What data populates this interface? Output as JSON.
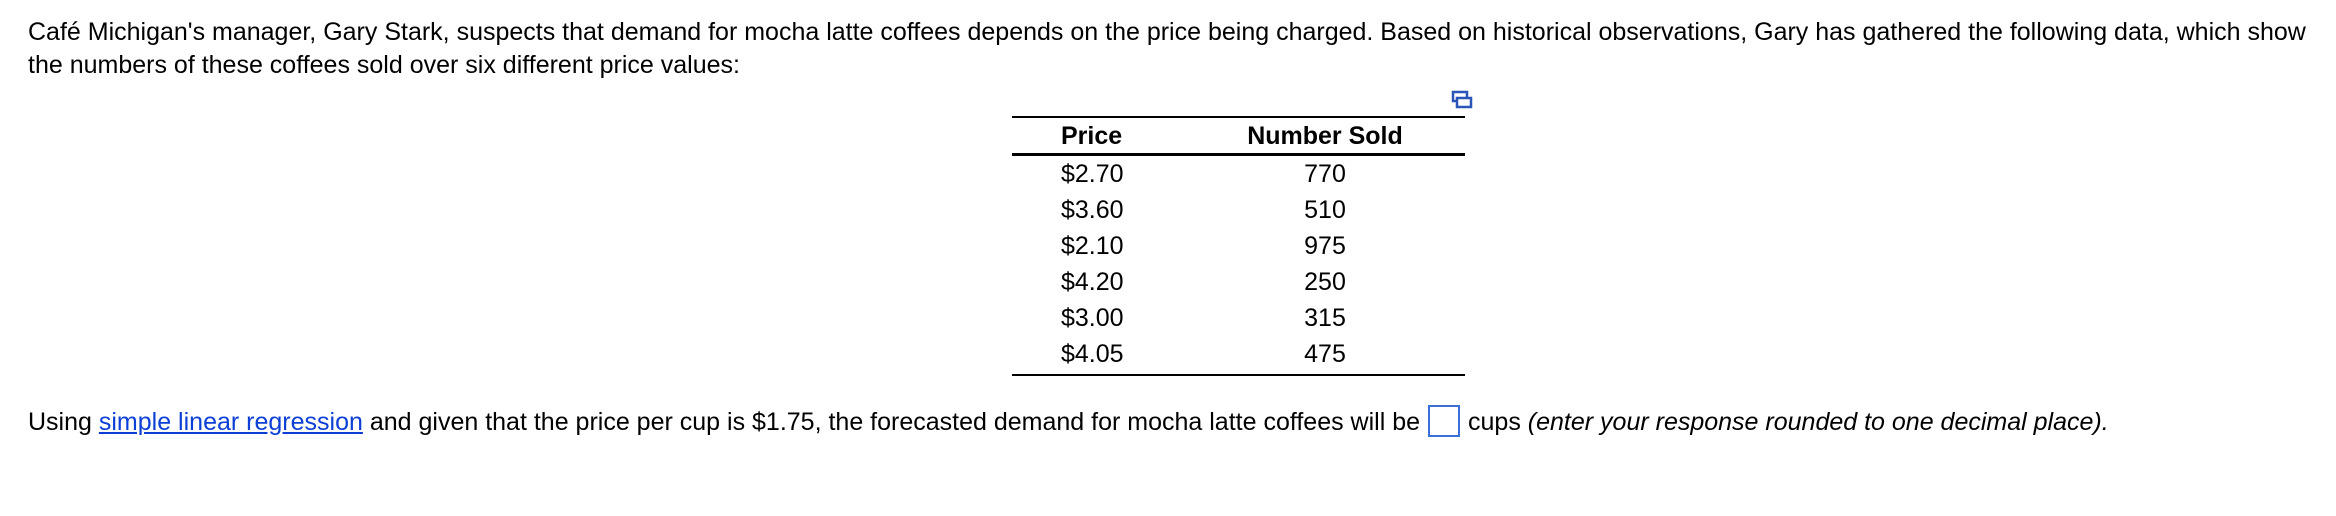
{
  "intro": "Café Michigan's manager, Gary Stark, suspects that demand for mocha latte coffees depends on the price being charged.  Based on historical observations, Gary has gathered the following data, which show the numbers of these coffees sold over six different price values:",
  "table": {
    "headers": [
      "Price",
      "Number Sold"
    ],
    "rows": [
      [
        "$2.70",
        770
      ],
      [
        "$3.60",
        510
      ],
      [
        "$2.10",
        975
      ],
      [
        "$4.20",
        250
      ],
      [
        "$3.00",
        315
      ],
      [
        "$4.05",
        475
      ]
    ]
  },
  "question": {
    "before_link": "Using ",
    "link": "simple linear regression",
    "after_link": " and given that the price per cup is $1.75, the forecasted demand for mocha latte coffees will be",
    "after_box": "cups",
    "note": "(enter your response rounded to one decimal place)."
  }
}
